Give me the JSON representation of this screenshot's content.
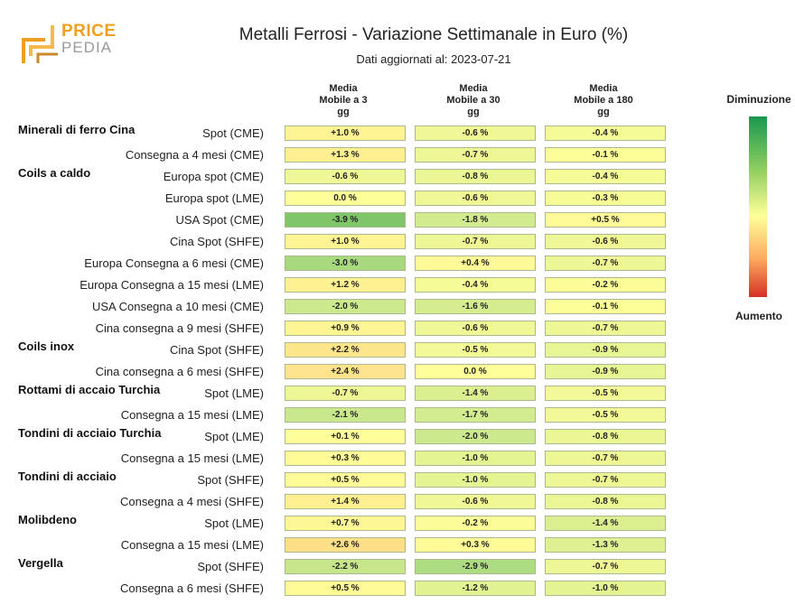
{
  "header": {
    "logo_line1": "PRICE",
    "logo_line2": "PEDIA",
    "title": "Metalli Ferrosi - Variazione Settimanale in Euro (%)",
    "subtitle": "Dati aggiornati al: 2023-07-21"
  },
  "legend": {
    "top_label": "Diminuzione",
    "bottom_label": "Aumento",
    "colors": [
      "#1a9850",
      "#91cf60",
      "#ffff99",
      "#fdae61",
      "#d73027"
    ]
  },
  "chart_data": {
    "type": "heatmap",
    "title": "Metalli Ferrosi - Variazione Settimanale in Euro (%)",
    "columns": [
      {
        "line1": "Media",
        "line2": "Mobile a 3",
        "line3": "gg"
      },
      {
        "line1": "Media",
        "line2": "Mobile a 30",
        "line3": "gg"
      },
      {
        "line1": "Media",
        "line2": "Mobile a 180",
        "line3": "gg"
      }
    ],
    "rows": [
      {
        "group": "Minerali di ferro Cina",
        "label": "Spot (CME)",
        "values": [
          1.0,
          -0.6,
          -0.4
        ]
      },
      {
        "group": "",
        "label": "Consegna a 4 mesi (CME)",
        "values": [
          1.3,
          -0.7,
          -0.1
        ]
      },
      {
        "group": "Coils a caldo",
        "label": "Europa spot (CME)",
        "values": [
          -0.6,
          -0.8,
          -0.4
        ]
      },
      {
        "group": "",
        "label": "Europa spot (LME)",
        "values": [
          0.0,
          -0.6,
          -0.3
        ]
      },
      {
        "group": "",
        "label": "USA Spot (CME)",
        "values": [
          -3.9,
          -1.8,
          0.5
        ]
      },
      {
        "group": "",
        "label": "Cina Spot (SHFE)",
        "values": [
          1.0,
          -0.7,
          -0.6
        ]
      },
      {
        "group": "",
        "label": "Europa Consegna a 6 mesi (CME)",
        "values": [
          -3.0,
          0.4,
          -0.7
        ]
      },
      {
        "group": "",
        "label": "Europa Consegna a 15 mesi (LME)",
        "values": [
          1.2,
          -0.4,
          -0.2
        ]
      },
      {
        "group": "",
        "label": "USA Consegna a 10 mesi (CME)",
        "values": [
          -2.0,
          -1.6,
          -0.1
        ]
      },
      {
        "group": "",
        "label": "Cina consegna a 9 mesi (SHFE)",
        "values": [
          0.9,
          -0.6,
          -0.7
        ]
      },
      {
        "group": "Coils inox",
        "label": "Cina Spot (SHFE)",
        "values": [
          2.2,
          -0.5,
          -0.9
        ]
      },
      {
        "group": "",
        "label": "Cina consegna a 6 mesi (SHFE)",
        "values": [
          2.4,
          0.0,
          -0.9
        ]
      },
      {
        "group": "Rottami di accaio Turchia",
        "label": "Spot (LME)",
        "values": [
          -0.7,
          -1.4,
          -0.5
        ]
      },
      {
        "group": "",
        "label": "Consegna a 15 mesi (LME)",
        "values": [
          -2.1,
          -1.7,
          -0.5
        ]
      },
      {
        "group": "Tondini di acciaio Turchia",
        "label": "Spot (LME)",
        "values": [
          0.1,
          -2.0,
          -0.8
        ]
      },
      {
        "group": "",
        "label": "Consegna a 15 mesi (LME)",
        "values": [
          0.3,
          -1.0,
          -0.7
        ]
      },
      {
        "group": "Tondini di acciaio",
        "label": "Spot (SHFE)",
        "values": [
          0.5,
          -1.0,
          -0.7
        ]
      },
      {
        "group": "",
        "label": "Consegna a 4 mesi (SHFE)",
        "values": [
          1.4,
          -0.6,
          -0.8
        ]
      },
      {
        "group": "Molibdeno",
        "label": "Spot (LME)",
        "values": [
          0.7,
          -0.2,
          -1.4
        ]
      },
      {
        "group": "",
        "label": "Consegna a 15 mesi (LME)",
        "values": [
          2.6,
          0.3,
          -1.3
        ]
      },
      {
        "group": "Vergella",
        "label": "Spot (SHFE)",
        "values": [
          -2.2,
          -2.9,
          -0.7
        ]
      },
      {
        "group": "",
        "label": "Consegna a 6 mesi (SHFE)",
        "values": [
          0.5,
          -1.2,
          -1.0
        ]
      }
    ],
    "value_suffix": " %"
  }
}
